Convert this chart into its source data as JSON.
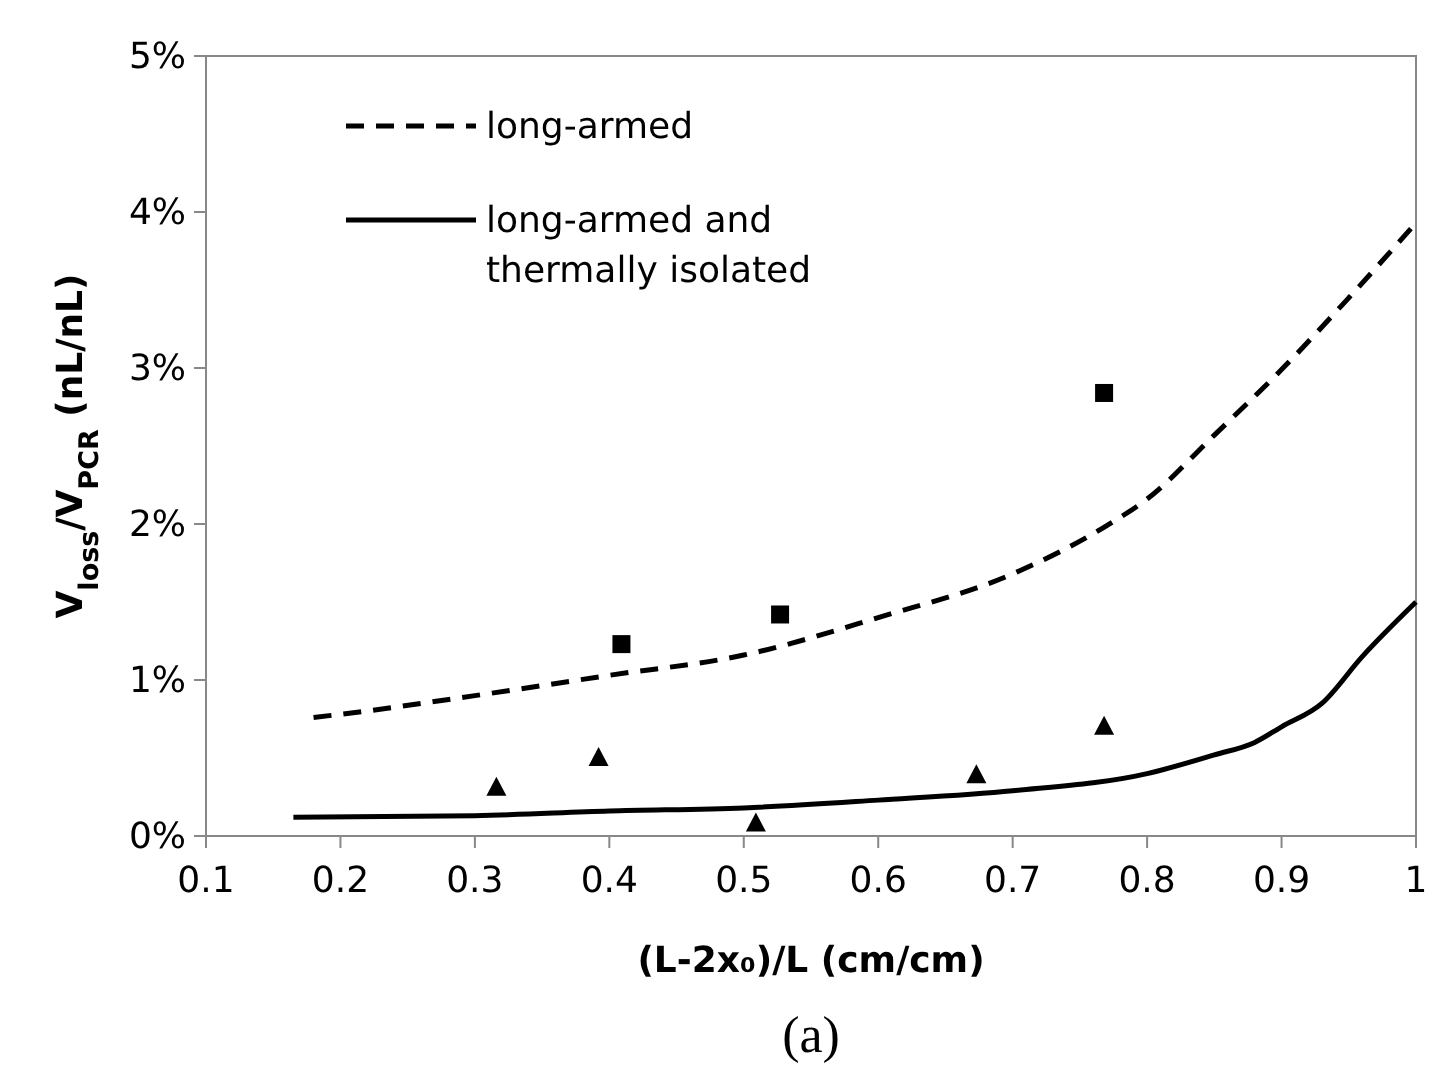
{
  "chart_data": {
    "type": "line",
    "xlabel": "(L-2x₀)/L (cm/cm)",
    "ylabel": "V$_{loss}$/V$_{PCR}$ (nL/nL)",
    "annotations": [
      "(a)"
    ],
    "xlim": [
      0.1,
      1
    ],
    "xticks": [
      0.1,
      0.2,
      0.3,
      0.4,
      0.5,
      0.6,
      0.7,
      0.8,
      0.9,
      1
    ],
    "ylim": [
      0,
      5
    ],
    "yticks": [
      {
        "value": 0,
        "label": "0%"
      },
      {
        "value": 1,
        "label": "1%"
      },
      {
        "value": 2,
        "label": "2%"
      },
      {
        "value": 3,
        "label": "3%"
      },
      {
        "value": 4,
        "label": "4%"
      },
      {
        "value": 5,
        "label": "5%"
      }
    ],
    "grid": false,
    "legend": "top left",
    "series": [
      {
        "name": "long-armed",
        "type": "line",
        "color": "#000000",
        "line_style": "dashed",
        "marker": "none",
        "x": [
          0.18,
          0.2,
          0.3,
          0.4,
          0.5,
          0.6,
          0.7,
          0.77,
          0.8,
          0.85,
          0.9,
          0.95,
          1
        ],
        "values": [
          0.76,
          0.78,
          0.9,
          1.03,
          1.16,
          1.4,
          1.68,
          1.99,
          2.16,
          2.57,
          2.99,
          3.45,
          3.93
        ]
      },
      {
        "name": "long-armed and thermally isolated",
        "type": "line",
        "color": "#000000",
        "line_style": "solid",
        "marker": "none",
        "x": [
          0.165,
          0.3,
          0.4,
          0.5,
          0.6,
          0.7,
          0.8,
          0.85,
          0.88,
          0.9,
          0.93,
          0.96,
          1
        ],
        "values": [
          0.12,
          0.13,
          0.16,
          0.18,
          0.23,
          0.29,
          0.4,
          0.52,
          0.6,
          0.7,
          0.85,
          1.15,
          1.5
        ]
      },
      {
        "type": "scatter",
        "color": "#000000",
        "marker": "square",
        "x": [
          0.409,
          0.527,
          0.768
        ],
        "values": [
          1.23,
          1.42,
          2.84
        ]
      },
      {
        "type": "scatter",
        "color": "#000000",
        "marker": "triangle",
        "x": [
          0.316,
          0.392,
          0.509,
          0.673,
          0.768
        ],
        "values": [
          0.31,
          0.5,
          0.08,
          0.39,
          0.7
        ]
      }
    ]
  }
}
